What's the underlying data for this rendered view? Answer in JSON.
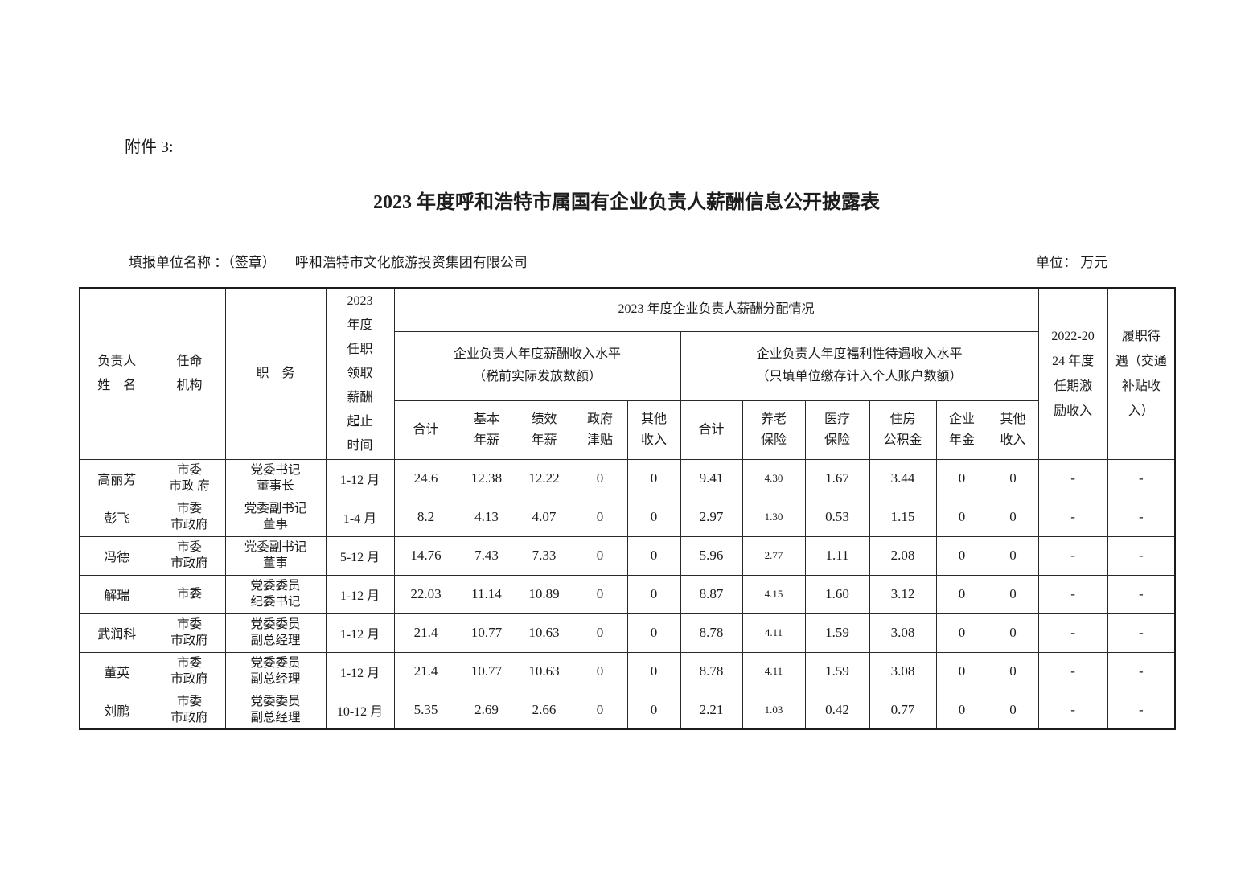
{
  "page": {
    "attachment_label": "附件 3:",
    "title": "2023 年度呼和浩特市属国有企业负责人薪酬信息公开披露表",
    "form_unit_label": "填报单位名称 ：（签章）",
    "form_unit_value": "呼和浩特市文化旅游投资集团有限公司",
    "unit_label": "单位： 万元"
  },
  "table": {
    "header": {
      "col_name": "负责人\n姓　名",
      "col_agency": "任命\n机构",
      "col_position": "职　务",
      "col_period": "2023\n年度\n任职\n领取\n薪酬\n起止\n时间",
      "group_main": "2023 年度企业负责人薪酬分配情况",
      "group_salary": "企业负责人年度薪酬收入水平\n（税前实际发放数额）",
      "group_welfare": "企业负责人年度福利性待遇收入水平\n（只填单位缴存计入个人账户数额）",
      "sub_salary_total": "合计",
      "sub_base_salary": "基本\n年薪",
      "sub_performance_salary": "绩效\n年薪",
      "sub_gov_allowance": "政府\n津贴",
      "sub_other_income": "其他\n收入",
      "sub_welfare_total": "合计",
      "sub_pension": "养老\n保险",
      "sub_medical": "医疗\n保险",
      "sub_housing_fund": "住房\n公积金",
      "sub_annuity": "企业\n年金",
      "sub_other_welfare": "其他\n收入",
      "col_tenure_incentive": "2022-20\n24 年度\n任期激\n励收入",
      "col_duty_allowance": "履职待\n遇（交通\n补贴收\n入）"
    },
    "rows": [
      {
        "name": "高丽芳",
        "agency": "市委\n市政 府",
        "position": "党委书记\n董事长",
        "period": "1-12 月",
        "values": [
          "24.6",
          "12.38",
          "12.22",
          "0",
          "0",
          "9.41",
          "4.30",
          "1.67",
          "3.44",
          "0",
          "0",
          "-",
          "-"
        ]
      },
      {
        "name": "彭飞",
        "agency": "市委\n市政府",
        "position": "党委副书记\n董事",
        "period": "1-4 月",
        "values": [
          "8.2",
          "4.13",
          "4.07",
          "0",
          "0",
          "2.97",
          "1.30",
          "0.53",
          "1.15",
          "0",
          "0",
          "-",
          "-"
        ]
      },
      {
        "name": "冯德",
        "agency": "市委\n市政府",
        "position": "党委副书记\n董事",
        "period": "5-12 月",
        "values": [
          "14.76",
          "7.43",
          "7.33",
          "0",
          "0",
          "5.96",
          "2.77",
          "1.11",
          "2.08",
          "0",
          "0",
          "-",
          "-"
        ]
      },
      {
        "name": "解瑞",
        "agency": "市委",
        "position": "党委委员\n纪委书记",
        "period": "1-12 月",
        "values": [
          "22.03",
          "11.14",
          "10.89",
          "0",
          "0",
          "8.87",
          "4.15",
          "1.60",
          "3.12",
          "0",
          "0",
          "-",
          "-"
        ]
      },
      {
        "name": "武润科",
        "agency": "市委\n市政府",
        "position": "党委委员\n副总经理",
        "period": "1-12 月",
        "values": [
          "21.4",
          "10.77",
          "10.63",
          "0",
          "0",
          "8.78",
          "4.11",
          "1.59",
          "3.08",
          "0",
          "0",
          "-",
          "-"
        ]
      },
      {
        "name": "董英",
        "agency": "市委\n市政府",
        "position": "党委委员\n副总经理",
        "period": "1-12 月",
        "values": [
          "21.4",
          "10.77",
          "10.63",
          "0",
          "0",
          "8.78",
          "4.11",
          "1.59",
          "3.08",
          "0",
          "0",
          "-",
          "-"
        ]
      },
      {
        "name": "刘鹏",
        "agency": "市委\n市政府",
        "position": "党委委员\n副总经理",
        "period": "10-12 月",
        "values": [
          "5.35",
          "2.69",
          "2.66",
          "0",
          "0",
          "2.21",
          "1.03",
          "0.42",
          "0.77",
          "0",
          "0",
          "-",
          "-"
        ]
      }
    ]
  }
}
